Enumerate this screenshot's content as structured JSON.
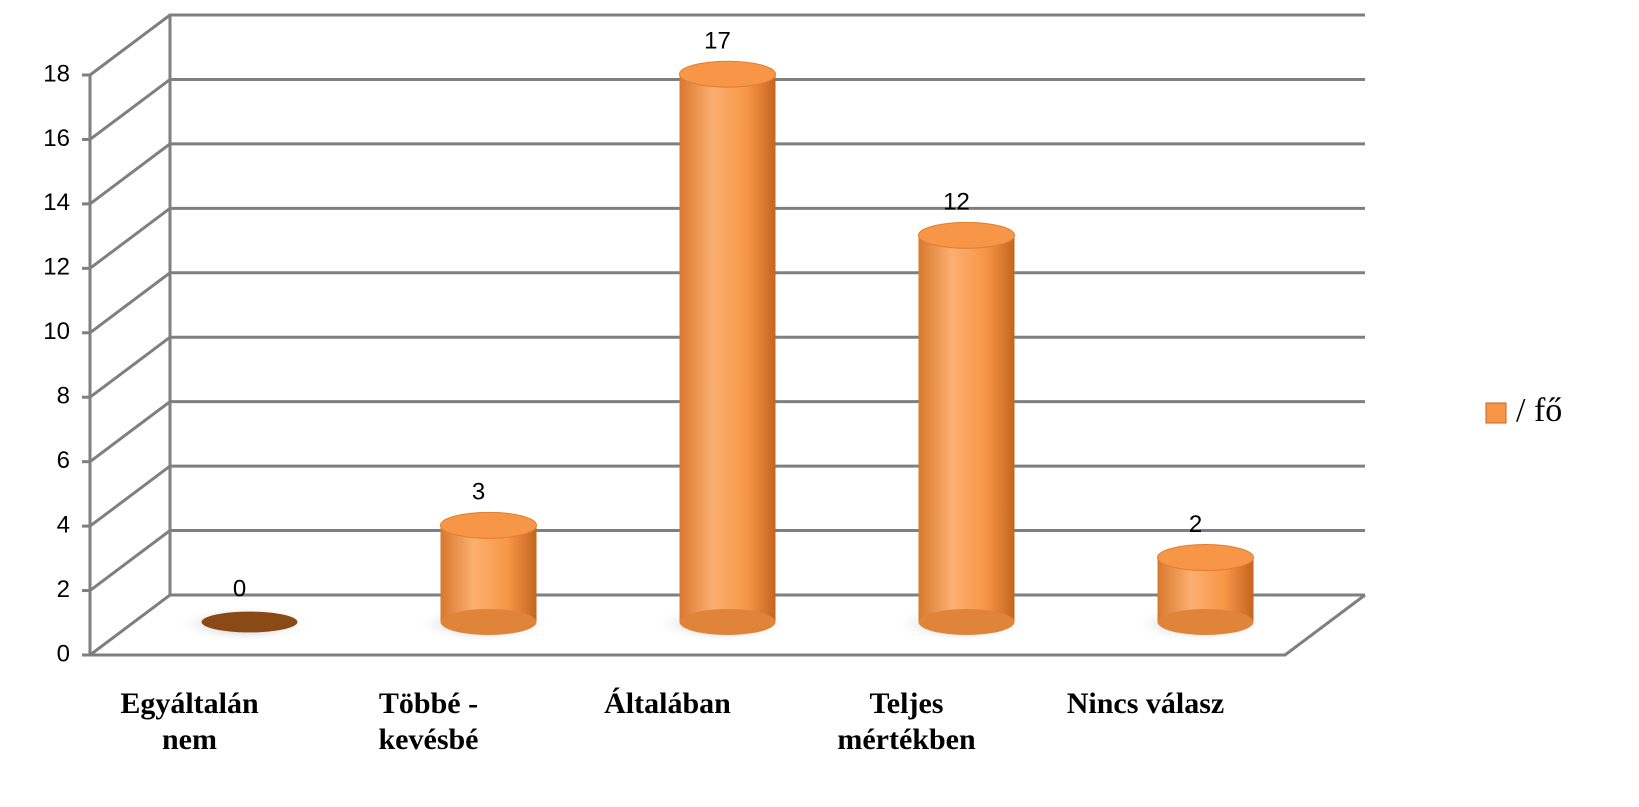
{
  "chart_data": {
    "type": "bar3d",
    "categories": [
      "Egyáltalán\nnem",
      "Többé -\nkevésbé",
      "Általában",
      "Teljes\nmértékben",
      "Nincs válasz"
    ],
    "series": [
      {
        "name": "/ fő",
        "color": "#f79646",
        "values": [
          0,
          3,
          17,
          12,
          2
        ]
      }
    ],
    "ylim": [
      0,
      18
    ],
    "yticks": [
      0,
      2,
      4,
      6,
      8,
      10,
      12,
      14,
      16,
      18
    ],
    "grid": true,
    "legend": "right"
  }
}
